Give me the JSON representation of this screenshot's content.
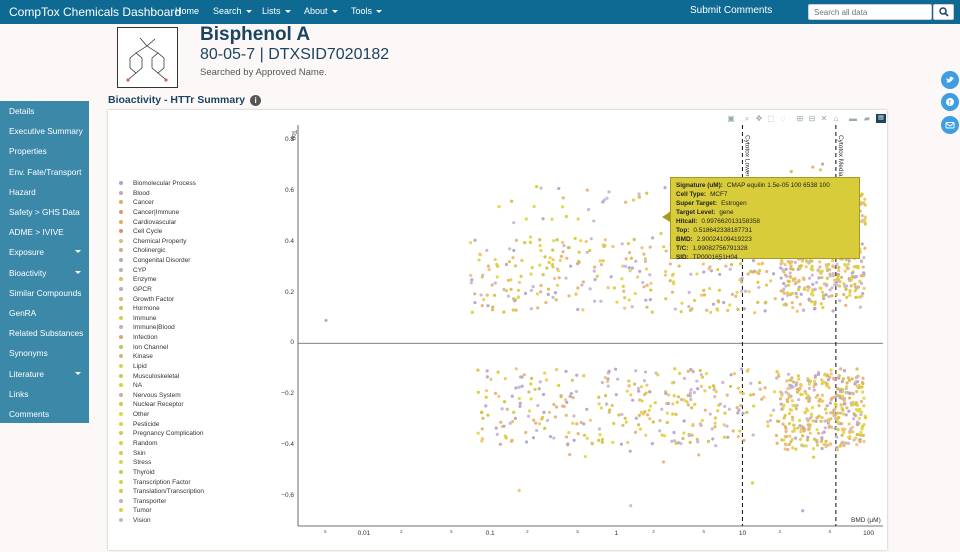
{
  "header": {
    "brand": "CompTox Chemicals Dashboard",
    "nav": [
      {
        "label": "Home",
        "dropdown": false
      },
      {
        "label": "Search",
        "dropdown": true
      },
      {
        "label": "Lists",
        "dropdown": true
      },
      {
        "label": "About",
        "dropdown": true
      },
      {
        "label": "Tools",
        "dropdown": true
      }
    ],
    "submit_comments": "Submit Comments",
    "search_placeholder": "Search all data",
    "search_icon": "search-icon",
    "bar_color": "#0e6a93"
  },
  "chemical": {
    "name": "Bisphenol A",
    "ids": "80-05-7 | DTXSID7020182",
    "searched_by": "Searched by Approved Name."
  },
  "section_title": "Bioactivity - HTTr Summary",
  "sidebar": {
    "color": "#3b88a9",
    "items": [
      {
        "label": "Details",
        "dropdown": false
      },
      {
        "label": "Executive Summary",
        "dropdown": false
      },
      {
        "label": "Properties",
        "dropdown": false
      },
      {
        "label": "Env. Fate/Transport",
        "dropdown": false
      },
      {
        "label": "Hazard",
        "dropdown": false
      },
      {
        "label": "Safety > GHS Data",
        "dropdown": false
      },
      {
        "label": "ADME > IVIVE",
        "dropdown": false
      },
      {
        "label": "Exposure",
        "dropdown": true
      },
      {
        "label": "Bioactivity",
        "dropdown": true
      },
      {
        "label": "Similar Compounds",
        "dropdown": false
      },
      {
        "label": "GenRA",
        "dropdown": false
      },
      {
        "label": "Related Substances",
        "dropdown": false
      },
      {
        "label": "Synonyms",
        "dropdown": false
      },
      {
        "label": "Literature",
        "dropdown": true
      },
      {
        "label": "Links",
        "dropdown": false
      },
      {
        "label": "Comments",
        "dropdown": false
      }
    ]
  },
  "social": [
    "twitter-icon",
    "facebook-icon",
    "email-icon"
  ],
  "chart_data": {
    "type": "scatter",
    "xlabel": "BMD (µM)",
    "ylabel": "Top",
    "x_scale": "log",
    "xlim": [
      0.003,
      130
    ],
    "ylim": [
      -0.72,
      0.86
    ],
    "x_ticks": [
      {
        "value": 0.01,
        "label": "0.01"
      },
      {
        "value": 0.1,
        "label": "0.1"
      },
      {
        "value": 1,
        "label": "1"
      },
      {
        "value": 10,
        "label": "10"
      },
      {
        "value": 100,
        "label": "100"
      }
    ],
    "x_minor_ticks": [
      {
        "value": 0.005,
        "label": "5"
      },
      {
        "value": 0.02,
        "label": "2"
      },
      {
        "value": 0.05,
        "label": "5"
      },
      {
        "value": 0.2,
        "label": "2"
      },
      {
        "value": 0.5,
        "label": "5"
      },
      {
        "value": 2,
        "label": "2"
      },
      {
        "value": 5,
        "label": "5"
      },
      {
        "value": 20,
        "label": "2"
      },
      {
        "value": 50,
        "label": "5"
      }
    ],
    "y_ticks": [
      {
        "value": 0.8,
        "label": "0.8"
      },
      {
        "value": 0.6,
        "label": "0.6"
      },
      {
        "value": 0.4,
        "label": "0.4"
      },
      {
        "value": 0.2,
        "label": "0.2"
      },
      {
        "value": 0,
        "label": "0"
      },
      {
        "value": -0.2,
        "label": "−0.2"
      },
      {
        "value": -0.4,
        "label": "−0.4"
      },
      {
        "value": -0.6,
        "label": "−0.6"
      }
    ],
    "vlines": [
      {
        "x": 10,
        "label": "Cytotox Lower Bo"
      },
      {
        "x": 55,
        "label": "Cytotox Median Bo"
      }
    ],
    "legend": [
      {
        "name": "Biomolecular Process",
        "color": "#b0a2c8"
      },
      {
        "name": "Blood",
        "color": "#c8a8b8"
      },
      {
        "name": "Cancer",
        "color": "#d8b070"
      },
      {
        "name": "Cancer|Immune",
        "color": "#d89a6a"
      },
      {
        "name": "Cardiovascular",
        "color": "#d8b060"
      },
      {
        "name": "Cell Cycle",
        "color": "#e08a6a"
      },
      {
        "name": "Chemical Property",
        "color": "#d8c070"
      },
      {
        "name": "Cholinergic",
        "color": "#c8b08a"
      },
      {
        "name": "Congenital Disorder",
        "color": "#b8a8c0"
      },
      {
        "name": "CYP",
        "color": "#b8b0b8"
      },
      {
        "name": "Enzyme",
        "color": "#d8c060"
      },
      {
        "name": "GPCR",
        "color": "#c0a8c8"
      },
      {
        "name": "Growth Factor",
        "color": "#d8b870"
      },
      {
        "name": "Hormone",
        "color": "#d0c060"
      },
      {
        "name": "Immune",
        "color": "#d8c858"
      },
      {
        "name": "Immune|Blood",
        "color": "#d0a8c0"
      },
      {
        "name": "Infection",
        "color": "#d8a878"
      },
      {
        "name": "Ion Channel",
        "color": "#c8c068"
      },
      {
        "name": "Kinase",
        "color": "#d0b878"
      },
      {
        "name": "Lipid",
        "color": "#dcd050"
      },
      {
        "name": "Musculoskeletal",
        "color": "#c8c860"
      },
      {
        "name": "NA",
        "color": "#d8d040"
      },
      {
        "name": "Nervous System",
        "color": "#c8b0a0"
      },
      {
        "name": "Nuclear Receptor",
        "color": "#d8c850"
      },
      {
        "name": "Other",
        "color": "#e0d840"
      },
      {
        "name": "Pesticide",
        "color": "#d8d448"
      },
      {
        "name": "Pregnancy Complication",
        "color": "#d0c858"
      },
      {
        "name": "Random",
        "color": "#e0d040"
      },
      {
        "name": "Skin",
        "color": "#d4cc50"
      },
      {
        "name": "Stress",
        "color": "#dcd448"
      },
      {
        "name": "Thyroid",
        "color": "#c8c850"
      },
      {
        "name": "Transcription Factor",
        "color": "#d8d040"
      },
      {
        "name": "Translation/Transcription",
        "color": "#d0cc48"
      },
      {
        "name": "Transporter",
        "color": "#c0b0c0"
      },
      {
        "name": "Tumor",
        "color": "#d8d048"
      },
      {
        "name": "Vision",
        "color": "#c8b8b0"
      }
    ],
    "series_note_colors": [
      "#d9cd3a",
      "#e3d64a",
      "#c7b6d6",
      "#b7a3cf",
      "#e8b27a",
      "#f0c66a",
      "#d4c04a"
    ],
    "tooltip": {
      "rows": [
        {
          "key": "Signature (uM):",
          "value": "CMAP equilin 1.5e-05 100 6538 100"
        },
        {
          "key": "Cell Type:",
          "value": "MCF7"
        },
        {
          "key": "Super Target:",
          "value": "Estrogen"
        },
        {
          "key": "Target Level:",
          "value": "gene"
        },
        {
          "key": "Hitcall:",
          "value": "0.997662013158358"
        },
        {
          "key": "Top:",
          "value": "0.518642338187731"
        },
        {
          "key": "BMD:",
          "value": "2.90024109419223"
        },
        {
          "key": "T/C:",
          "value": "1.99082756791328"
        },
        {
          "key": "SID:",
          "value": "TP0001651H04"
        }
      ]
    }
  }
}
